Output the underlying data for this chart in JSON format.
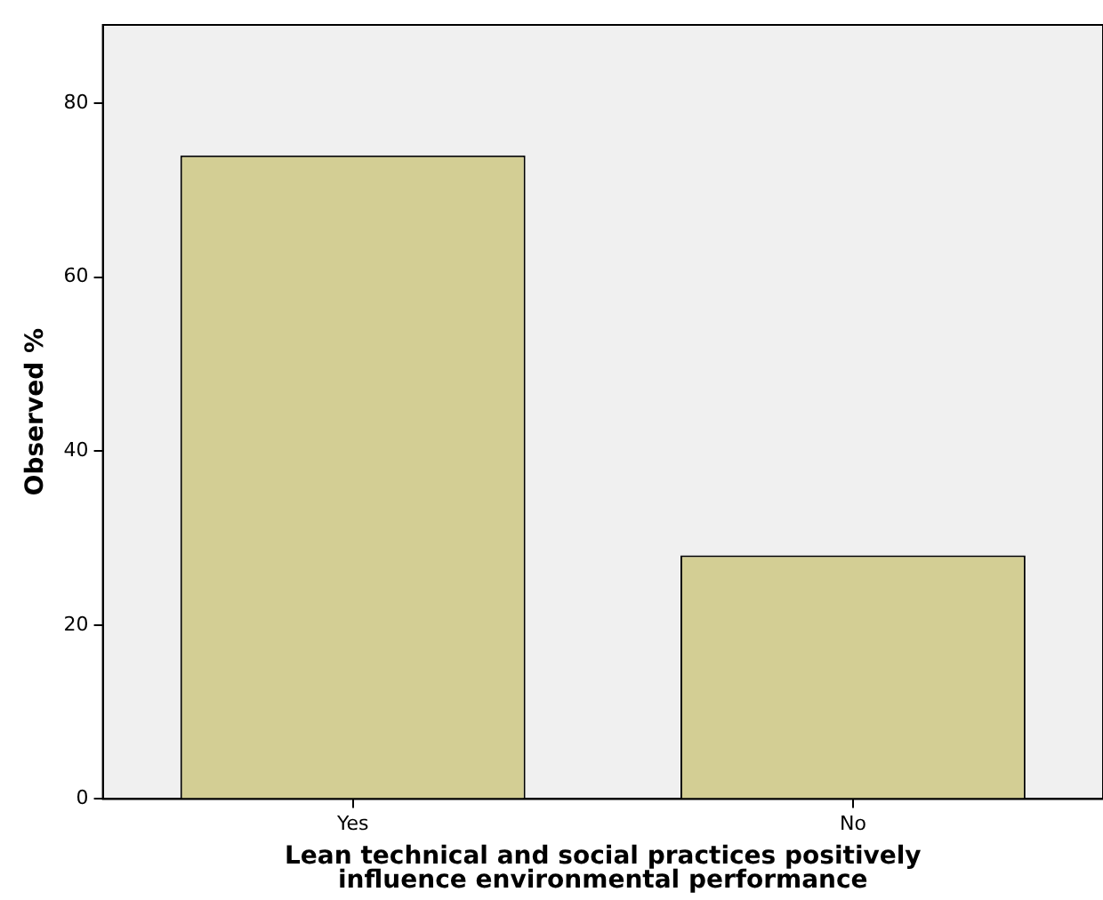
{
  "chart_data": {
    "type": "bar",
    "xlabel": "Lean technical and social practices positively influence environmental performance",
    "ylabel": "Observed %",
    "categories": [
      "Yes",
      "No"
    ],
    "values": [
      74,
      28
    ],
    "color": "#d3ce94",
    "ylim": [
      0,
      89
    ],
    "yticks": [
      0,
      20,
      40,
      60,
      80
    ],
    "grid": false,
    "legend": false
  }
}
